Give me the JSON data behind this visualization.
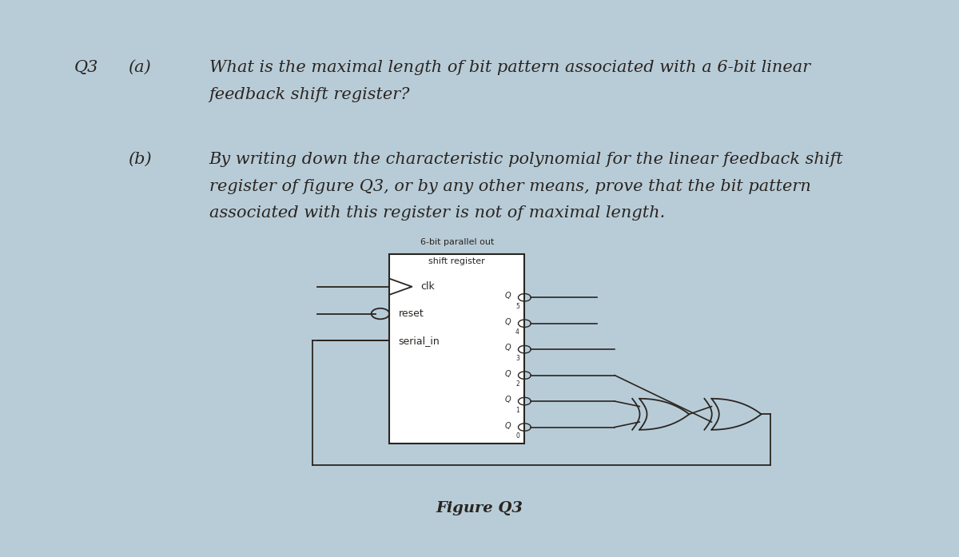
{
  "bg_outer": "#b8ccd8",
  "bg_page": "#ede5e0",
  "text_color": "#2a2520",
  "line_color": "#2a2520",
  "q3_label": "Q3",
  "a_label": "(a)",
  "b_label": "(b)",
  "text_a1": "What is the maximal length of bit pattern associated with a 6-bit linear",
  "text_a2": "feedback shift register?",
  "text_b1": "By writing down the characteristic polynomial for the linear feedback shift",
  "text_b2": "register of figure Q3, or by any other means, prove that the bit pattern",
  "text_b3": "associated with this register is not of maximal length.",
  "register_label1": "6-bit parallel out",
  "register_label2": "shift register",
  "clk_label": "clk",
  "reset_label": "reset",
  "serial_in_label": "serial_in",
  "figure_label": "Figure Q3",
  "q_labels": [
    "Q5",
    "Q4",
    "Q3",
    "Q2",
    "Q1",
    "Q0"
  ],
  "q_subs": [
    "5",
    "4",
    "3",
    "2",
    "1",
    "0"
  ]
}
